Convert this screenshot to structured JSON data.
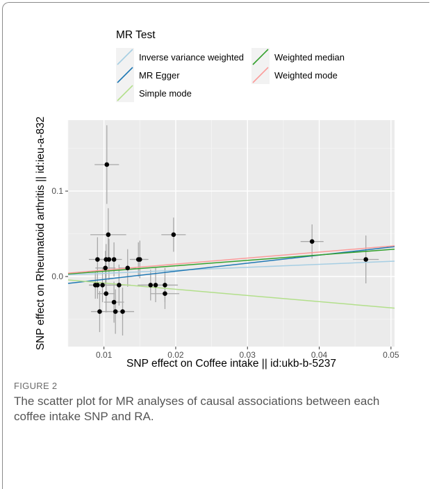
{
  "chart_data": {
    "type": "scatter",
    "xlabel": "SNP effect on Coffee intake || id:ukb-b-5237",
    "ylabel": "SNP effect on Rheumatoid arthritis || id:ieu-a-832",
    "xlim": [
      0.005,
      0.0505
    ],
    "ylim": [
      -0.082,
      0.183
    ],
    "x_ticks": [
      0.01,
      0.02,
      0.03,
      0.04,
      0.05
    ],
    "x_tick_labels": [
      "0.01",
      "0.02",
      "0.03",
      "0.04",
      "0.05"
    ],
    "y_ticks": [
      0.0,
      0.1
    ],
    "y_tick_labels": [
      "0.0",
      "0.1"
    ],
    "grid": true,
    "legend": {
      "title": "MR Test",
      "placement": "top",
      "entries": [
        {
          "label": "Inverse variance weighted",
          "color": "#a6cee3"
        },
        {
          "label": "MR Egger",
          "color": "#1f78b4"
        },
        {
          "label": "Simple mode",
          "color": "#b2df8a"
        },
        {
          "label": "Weighted median",
          "color": "#33a02c"
        },
        {
          "label": "Weighted mode",
          "color": "#fb9a99"
        }
      ]
    },
    "points": [
      {
        "x": 0.0104,
        "y": 0.131,
        "xerr": 0.0017,
        "yerr": 0.046
      },
      {
        "x": 0.0106,
        "y": 0.049,
        "xerr": 0.0025,
        "yerr": 0.031
      },
      {
        "x": 0.0197,
        "y": 0.049,
        "xerr": 0.0017,
        "yerr": 0.02
      },
      {
        "x": 0.039,
        "y": 0.041,
        "xerr": 0.0016,
        "yerr": 0.02
      },
      {
        "x": 0.0465,
        "y": 0.02,
        "xerr": 0.0018,
        "yerr": 0.028
      },
      {
        "x": 0.0091,
        "y": 0.02,
        "xerr": 0.0012,
        "yerr": 0.026
      },
      {
        "x": 0.0103,
        "y": 0.02,
        "xerr": 0.0012,
        "yerr": 0.018
      },
      {
        "x": 0.0107,
        "y": 0.02,
        "xerr": 0.0012,
        "yerr": 0.024
      },
      {
        "x": 0.0114,
        "y": 0.02,
        "xerr": 0.0011,
        "yerr": 0.02
      },
      {
        "x": 0.0148,
        "y": 0.02,
        "xerr": 0.0012,
        "yerr": 0.02
      },
      {
        "x": 0.015,
        "y": 0.02,
        "xerr": 0.0012,
        "yerr": 0.022
      },
      {
        "x": 0.0102,
        "y": 0.01,
        "xerr": 0.0014,
        "yerr": 0.02
      },
      {
        "x": 0.0133,
        "y": 0.01,
        "xerr": 0.0012,
        "yerr": 0.022
      },
      {
        "x": 0.0088,
        "y": -0.01,
        "xerr": 0.0008,
        "yerr": 0.016
      },
      {
        "x": 0.0091,
        "y": -0.01,
        "xerr": 0.0012,
        "yerr": 0.016
      },
      {
        "x": 0.0098,
        "y": -0.01,
        "xerr": 0.0012,
        "yerr": 0.02
      },
      {
        "x": 0.0121,
        "y": -0.01,
        "xerr": 0.0016,
        "yerr": 0.024
      },
      {
        "x": 0.0165,
        "y": -0.01,
        "xerr": 0.0018,
        "yerr": 0.018
      },
      {
        "x": 0.0172,
        "y": -0.01,
        "xerr": 0.002,
        "yerr": 0.02
      },
      {
        "x": 0.0185,
        "y": -0.01,
        "xerr": 0.0018,
        "yerr": 0.02
      },
      {
        "x": 0.0103,
        "y": -0.02,
        "xerr": 0.0012,
        "yerr": 0.022
      },
      {
        "x": 0.0185,
        "y": -0.02,
        "xerr": 0.002,
        "yerr": 0.018
      },
      {
        "x": 0.0114,
        "y": -0.03,
        "xerr": 0.0014,
        "yerr": 0.024
      },
      {
        "x": 0.0094,
        "y": -0.041,
        "xerr": 0.0012,
        "yerr": 0.024
      },
      {
        "x": 0.0116,
        "y": -0.041,
        "xerr": 0.0014,
        "yerr": 0.026
      },
      {
        "x": 0.0126,
        "y": -0.041,
        "xerr": 0.0016,
        "yerr": 0.028
      }
    ],
    "lines": [
      {
        "method": "Inverse variance weighted",
        "y_at_xmin": 0.002,
        "y_at_xmax": 0.018
      },
      {
        "method": "MR Egger",
        "y_at_xmin": -0.008,
        "y_at_xmax": 0.035
      },
      {
        "method": "Simple mode",
        "y_at_xmin": -0.004,
        "y_at_xmax": -0.037
      },
      {
        "method": "Weighted median",
        "y_at_xmin": 0.003,
        "y_at_xmax": 0.032
      },
      {
        "method": "Weighted mode",
        "y_at_xmin": 0.004,
        "y_at_xmax": 0.036
      }
    ]
  },
  "caption": {
    "label": "FIGURE 2",
    "text": "The scatter plot for MR analyses of causal associations between each coffee intake SNP and RA."
  }
}
